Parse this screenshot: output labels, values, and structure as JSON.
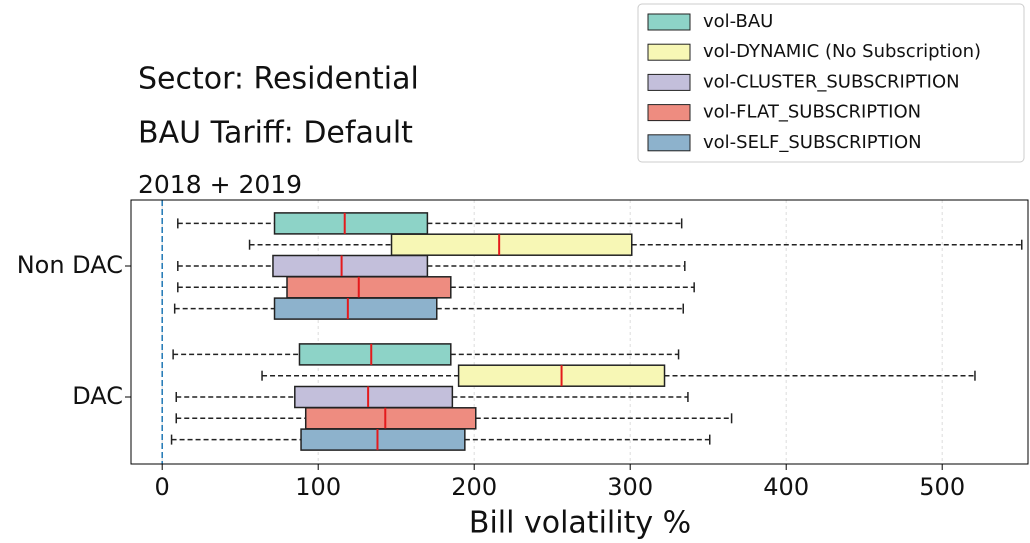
{
  "chart_data": {
    "type": "boxplot",
    "orientation": "horizontal",
    "title": "Sector: Residential",
    "subtitle": "BAU Tariff: Default",
    "annotation": "2018 + 2019",
    "xlabel": "Bill volatility %",
    "categories": [
      "Non DAC",
      "DAC"
    ],
    "xlim": [
      -20,
      555
    ],
    "xticks": [
      0,
      100,
      200,
      300,
      400,
      500
    ],
    "grid": true,
    "reference_line": {
      "x": 0,
      "color": "#1f77b4"
    },
    "legend": "upper right",
    "series": [
      {
        "name": "vol-BAU",
        "color": "#8dd3c7",
        "whisker_low": [
          10,
          7
        ],
        "q1": [
          72,
          88
        ],
        "median": [
          117,
          134
        ],
        "q3": [
          170,
          185
        ],
        "whisker_high": [
          333,
          331
        ]
      },
      {
        "name": "vol-DYNAMIC (No Subscription)",
        "color": "#f7f7b5",
        "whisker_low": [
          56,
          64
        ],
        "q1": [
          147,
          190
        ],
        "median": [
          216,
          256
        ],
        "q3": [
          301,
          322
        ],
        "whisker_high": [
          551,
          521
        ]
      },
      {
        "name": "vol-CLUSTER_SUBSCRIPTION",
        "color": "#c3bfdb",
        "whisker_low": [
          10,
          9
        ],
        "q1": [
          71,
          85
        ],
        "median": [
          115,
          132
        ],
        "q3": [
          170,
          186
        ],
        "whisker_high": [
          335,
          337
        ]
      },
      {
        "name": "vol-FLAT_SUBSCRIPTION",
        "color": "#ee8c80",
        "whisker_low": [
          10,
          9
        ],
        "q1": [
          80,
          92
        ],
        "median": [
          126,
          143
        ],
        "q3": [
          185,
          201
        ],
        "whisker_high": [
          341,
          365
        ]
      },
      {
        "name": "vol-SELF_SUBSCRIPTION",
        "color": "#8db2cc",
        "whisker_low": [
          8,
          6
        ],
        "q1": [
          72,
          89
        ],
        "median": [
          119,
          138
        ],
        "q3": [
          176,
          194
        ],
        "whisker_high": [
          334,
          351
        ]
      }
    ]
  }
}
